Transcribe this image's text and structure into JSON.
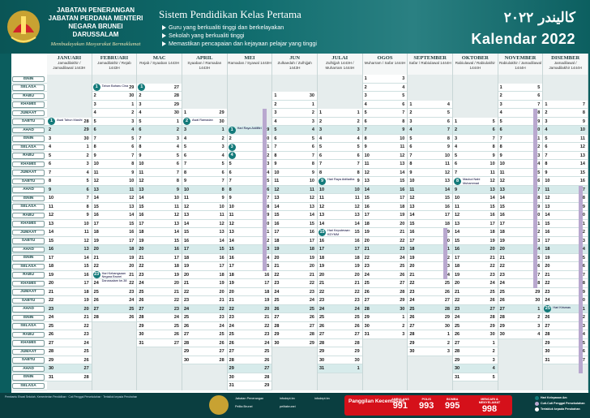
{
  "header": {
    "agency": [
      "JABATAN PENERANGAN",
      "JABATAN PERDANA MENTERI",
      "NEGARA BRUNEI DARUSSALAM"
    ],
    "motto": "Membudayakan Masyarakat Bermaklumat",
    "system_title": "Sistem Pendidikan Kelas Pertama",
    "bullets": [
      "Guru yang berkualiti tinggi dan berkelayakan",
      "Sekolah yang berkualiti tinggi",
      "Memastikan pencapaian dan kejayaan pelajar yang tinggi"
    ],
    "title_jawi": "كاليندر ٢٠٢٢",
    "title_main": "Kalendar 2022"
  },
  "months": [
    {
      "name": "JANUARI",
      "hijri": "Jamadilakhir / Jamadilawal 1443H"
    },
    {
      "name": "FEBRUARI",
      "hijri": "Jamadilakhir / Rejab 1443H"
    },
    {
      "name": "MAC",
      "hijri": "Rejab / Syaaban 1443H"
    },
    {
      "name": "APRIL",
      "hijri": "Syaaban / Ramadan 1443H"
    },
    {
      "name": "MEI",
      "hijri": "Ramadan / Syawal 1443H"
    },
    {
      "name": "JUN",
      "hijri": "Zulkaedah / Zulhijjah 1443H"
    },
    {
      "name": "JULAI",
      "hijri": "Zulhijjah 1443H / Muharram 1444H"
    },
    {
      "name": "OGOS",
      "hijri": "Muharram / Safar 1444H"
    },
    {
      "name": "SEPTEMBER",
      "hijri": "Safar / Rabiulawal 1444H"
    },
    {
      "name": "OKTOBER",
      "hijri": "Rabiulawal / Rabiulakhir 1444H"
    },
    {
      "name": "NOVEMBER",
      "hijri": "Rabiulakhir / Jamadilawal 1444H"
    },
    {
      "name": "DISEMBER",
      "hijri": "Jamadilawal / Jamadilakhir 1444H"
    }
  ],
  "daynames": [
    "ISNIN",
    "SELASA",
    "RABU",
    "KHAMIS",
    "JUMAAT",
    "SABTU",
    "AHAD"
  ],
  "month_start_dow": [
    5,
    1,
    1,
    4,
    6,
    2,
    4,
    0,
    3,
    5,
    1,
    3
  ],
  "month_days": [
    31,
    28,
    31,
    30,
    31,
    30,
    31,
    31,
    30,
    31,
    30,
    31
  ],
  "hijri_offset": [
    28,
    29,
    27,
    29,
    29,
    30,
    1,
    3,
    4,
    5,
    5,
    7
  ],
  "holidays": {
    "0": [
      1
    ],
    "1": [
      1,
      23
    ],
    "2": [
      1
    ],
    "3": [
      2
    ],
    "4": [
      1,
      3,
      4
    ],
    "5": [],
    "6": [
      9,
      15
    ],
    "7": [],
    "8": [],
    "9": [
      8
    ],
    "10": [],
    "11": [
      25
    ]
  },
  "notes": [
    {
      "m": 0,
      "d": 1,
      "t": "Awal Tahun Masihi"
    },
    {
      "m": 1,
      "d": 1,
      "t": "Tahun Baharu Cina"
    },
    {
      "m": 1,
      "d": 23,
      "t": "Hari Kebangsaan Negara Brunei Darussalam ke-38"
    },
    {
      "m": 3,
      "d": 2,
      "t": "Awal Ramadan"
    },
    {
      "m": 4,
      "d": 1,
      "t": "Hari Raya Aidilfitri"
    },
    {
      "m": 6,
      "d": 9,
      "t": "Hari Raya Aidiladha"
    },
    {
      "m": 6,
      "d": 15,
      "t": "Hari Keputeraan KDYMM"
    },
    {
      "m": 9,
      "d": 8,
      "t": "Maulud Nabi Muhammad"
    },
    {
      "m": 11,
      "d": 25,
      "t": "Hari Krismas"
    }
  ],
  "footer": {
    "notes": "Pembantu Ehwal Sekolah, Kementerian Pendidikan · Cuti Penggal Persekolahan · Tertakluk kepada Perubahan",
    "social": [
      "Jabatan Penerangan",
      "Pelita Brunei",
      "infodept.bn",
      "pelitabrunei",
      "infodept.bn"
    ],
    "emergency_label": "Panggilan Kecemasan",
    "services": [
      {
        "name": "AMBULANS",
        "num": "991"
      },
      {
        "name": "POLIS",
        "num": "993"
      },
      {
        "name": "BOMBA",
        "num": "995"
      },
      {
        "name": "MENCARI & MENYELAMAT",
        "num": "998"
      }
    ],
    "legend": [
      "Hari Kelepasan Am",
      "Cuti-Cuti Penggal Persekolahan",
      "Tertakluk kepada Perubahan"
    ]
  },
  "colors": {
    "accent": "#137a7a",
    "band": "#b9a8cf"
  }
}
